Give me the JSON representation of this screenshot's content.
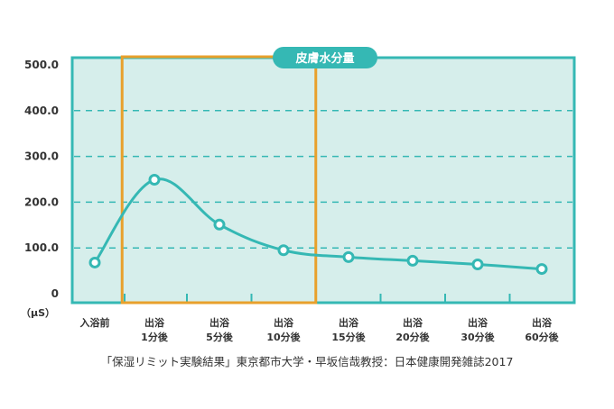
{
  "colors": {
    "panel": "#d6eeeb",
    "accent": "#35b8b4",
    "highlight": "#e8a02c",
    "point_fill": "#ffffff",
    "text": "#333333"
  },
  "chart_data": {
    "type": "line",
    "title": "皮膚水分量",
    "unit_label": "（μS）",
    "categories": [
      [
        "入浴前"
      ],
      [
        "出浴",
        "1分後"
      ],
      [
        "出浴",
        "5分後"
      ],
      [
        "出浴",
        "10分後"
      ],
      [
        "出浴",
        "15分後"
      ],
      [
        "出浴",
        "20分後"
      ],
      [
        "出浴",
        "30分後"
      ],
      [
        "出浴",
        "60分後"
      ]
    ],
    "values": [
      68,
      249,
      151,
      95,
      80,
      72,
      64,
      54
    ],
    "ylim": [
      0,
      500
    ],
    "yticks": [
      "0",
      "100.0",
      "200.0",
      "300.0",
      "400.0",
      "500.0"
    ],
    "grid": "dashed-horizontal",
    "highlight_range": [
      "出浴 1分後",
      "出浴 10分後"
    ],
    "source": "「保湿リミット実験結果」東京都市大学・早坂信哉教授：日本健康開発雑誌2017"
  }
}
